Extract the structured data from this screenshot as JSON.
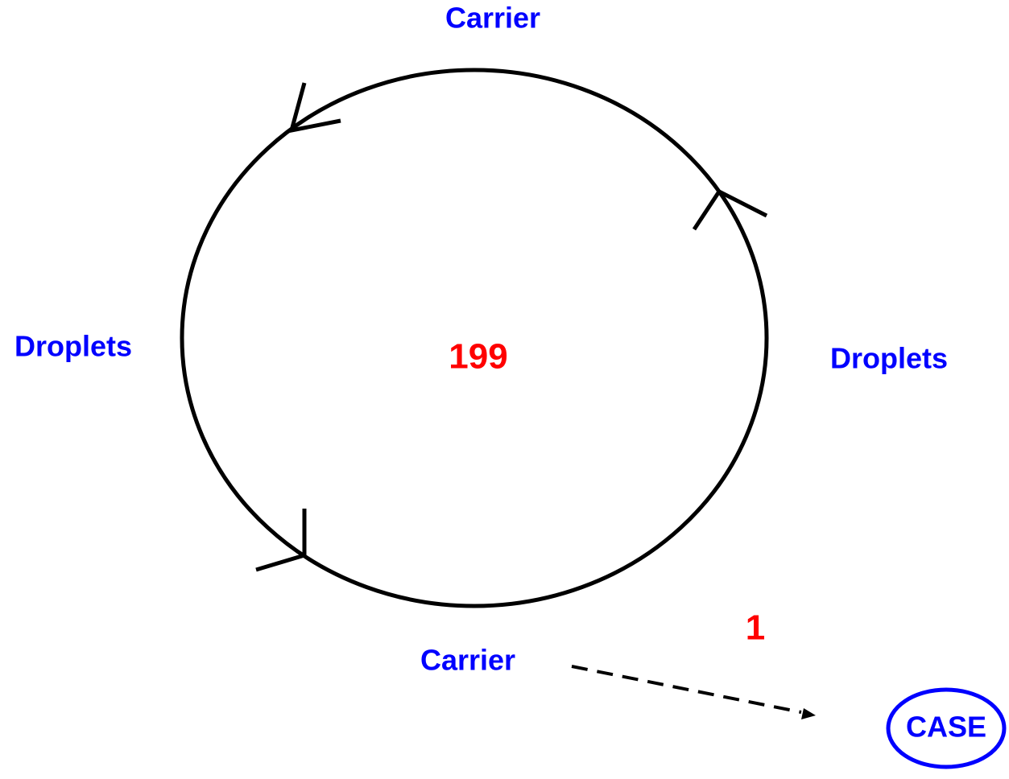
{
  "labels": {
    "top": "Carrier",
    "left": "Droplets",
    "right": "Droplets",
    "bottom": "Carrier",
    "center": "199",
    "outlier": "1",
    "case": "CASE"
  }
}
